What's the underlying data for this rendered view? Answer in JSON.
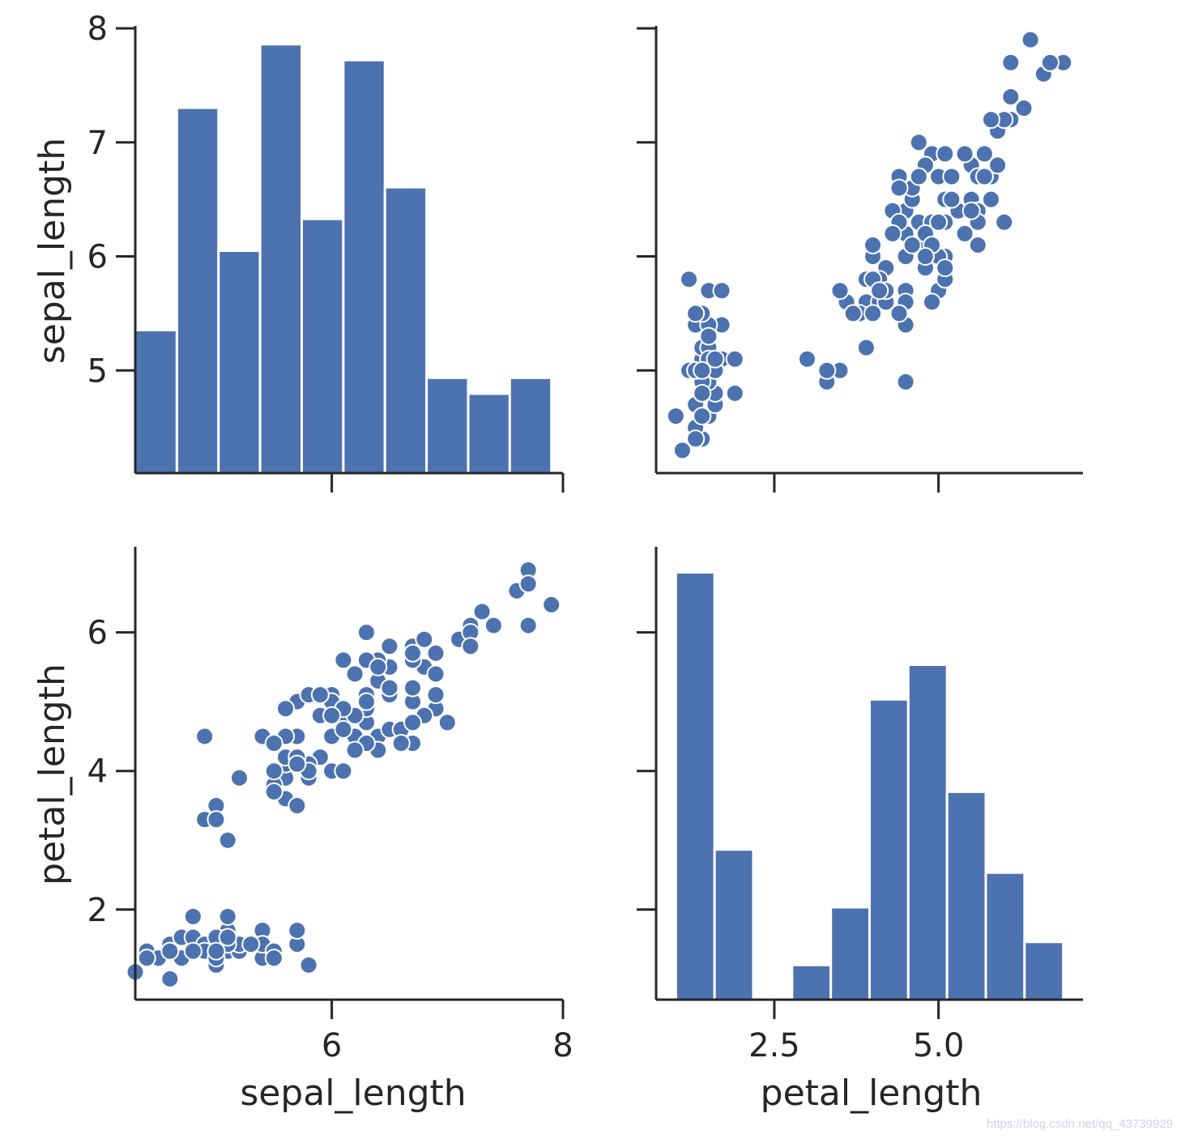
{
  "colors": {
    "mark": "#4c72b0",
    "mark_edge": "#ffffff",
    "axis": "#262626"
  },
  "chart_data": {
    "type": "pairplot",
    "variables": [
      "sepal_length",
      "petal_length"
    ],
    "panels": [
      {
        "id": "hist-sepal",
        "row": 0,
        "col": 0,
        "type": "bar",
        "x_variable": "sepal_length",
        "xlim": [
          4.3,
          8.0
        ],
        "xticks": [
          "6",
          "8"
        ],
        "xtick_values": [
          6,
          8
        ],
        "ylabel": "sepal_length",
        "ylim": [
          4.1,
          8.0
        ],
        "yticks": [
          "5",
          "6",
          "7",
          "8"
        ],
        "ytick_values": [
          5,
          6,
          7,
          8
        ],
        "bins": [
          4.3,
          4.66,
          5.02,
          5.38,
          5.74,
          6.1,
          6.46,
          6.82,
          7.18,
          7.54,
          7.9
        ],
        "counts": [
          9,
          23,
          14,
          27,
          16,
          26,
          18,
          6,
          5,
          6
        ],
        "count_max": 28
      },
      {
        "id": "scatter-top-right",
        "row": 0,
        "col": 1,
        "type": "scatter",
        "x_variable": "petal_length",
        "y_variable": "sepal_length",
        "xlim": [
          0.7,
          7.2
        ],
        "ylim": [
          4.1,
          8.0
        ],
        "xtick_values": [
          2.5,
          5.0
        ],
        "ytick_values": [
          5,
          6,
          7,
          8
        ],
        "points": [
          [
            1.4,
            5.1
          ],
          [
            1.4,
            4.9
          ],
          [
            1.3,
            4.7
          ],
          [
            1.5,
            4.6
          ],
          [
            1.4,
            5.0
          ],
          [
            1.7,
            5.4
          ],
          [
            1.4,
            4.6
          ],
          [
            1.5,
            5.0
          ],
          [
            1.4,
            4.4
          ],
          [
            1.5,
            4.9
          ],
          [
            1.5,
            5.4
          ],
          [
            1.6,
            4.8
          ],
          [
            1.4,
            4.8
          ],
          [
            1.1,
            4.3
          ],
          [
            1.2,
            5.8
          ],
          [
            1.5,
            5.7
          ],
          [
            1.3,
            5.4
          ],
          [
            1.4,
            5.1
          ],
          [
            1.7,
            5.7
          ],
          [
            1.5,
            5.1
          ],
          [
            1.7,
            5.4
          ],
          [
            1.5,
            5.1
          ],
          [
            1.0,
            4.6
          ],
          [
            1.7,
            5.1
          ],
          [
            1.9,
            4.8
          ],
          [
            1.6,
            5.0
          ],
          [
            1.6,
            5.0
          ],
          [
            1.5,
            5.2
          ],
          [
            1.4,
            5.2
          ],
          [
            1.6,
            4.7
          ],
          [
            1.6,
            4.8
          ],
          [
            1.5,
            5.4
          ],
          [
            1.5,
            5.2
          ],
          [
            1.4,
            5.5
          ],
          [
            1.5,
            4.9
          ],
          [
            1.2,
            5.0
          ],
          [
            1.3,
            5.5
          ],
          [
            1.4,
            4.9
          ],
          [
            1.3,
            4.4
          ],
          [
            1.5,
            5.1
          ],
          [
            1.3,
            5.0
          ],
          [
            1.3,
            4.5
          ],
          [
            1.3,
            4.4
          ],
          [
            1.6,
            5.0
          ],
          [
            1.9,
            5.1
          ],
          [
            1.4,
            4.8
          ],
          [
            1.6,
            5.1
          ],
          [
            1.4,
            4.6
          ],
          [
            1.5,
            5.3
          ],
          [
            1.4,
            5.0
          ],
          [
            4.7,
            7.0
          ],
          [
            4.5,
            6.4
          ],
          [
            4.9,
            6.9
          ],
          [
            4.0,
            5.5
          ],
          [
            4.6,
            6.5
          ],
          [
            4.5,
            5.7
          ],
          [
            4.7,
            6.3
          ],
          [
            3.3,
            4.9
          ],
          [
            4.6,
            6.6
          ],
          [
            3.9,
            5.2
          ],
          [
            3.5,
            5.0
          ],
          [
            4.2,
            5.9
          ],
          [
            4.0,
            6.0
          ],
          [
            4.7,
            6.1
          ],
          [
            3.6,
            5.6
          ],
          [
            4.4,
            6.7
          ],
          [
            4.5,
            5.6
          ],
          [
            4.1,
            5.8
          ],
          [
            4.5,
            6.2
          ],
          [
            3.9,
            5.6
          ],
          [
            4.8,
            5.9
          ],
          [
            4.0,
            6.1
          ],
          [
            4.9,
            6.3
          ],
          [
            4.7,
            6.1
          ],
          [
            4.3,
            6.4
          ],
          [
            4.4,
            6.6
          ],
          [
            4.8,
            6.8
          ],
          [
            5.0,
            6.7
          ],
          [
            4.5,
            6.0
          ],
          [
            3.5,
            5.7
          ],
          [
            3.8,
            5.5
          ],
          [
            3.7,
            5.5
          ],
          [
            3.9,
            5.8
          ],
          [
            5.1,
            6.0
          ],
          [
            4.5,
            5.4
          ],
          [
            4.5,
            6.0
          ],
          [
            4.7,
            6.7
          ],
          [
            4.4,
            6.3
          ],
          [
            4.1,
            5.6
          ],
          [
            4.0,
            5.5
          ],
          [
            4.4,
            5.5
          ],
          [
            4.6,
            6.1
          ],
          [
            4.0,
            5.8
          ],
          [
            3.3,
            5.0
          ],
          [
            4.2,
            5.6
          ],
          [
            4.2,
            5.7
          ],
          [
            4.2,
            5.7
          ],
          [
            4.3,
            6.2
          ],
          [
            3.0,
            5.1
          ],
          [
            4.1,
            5.7
          ],
          [
            6.0,
            6.3
          ],
          [
            5.1,
            5.8
          ],
          [
            5.9,
            7.1
          ],
          [
            5.6,
            6.3
          ],
          [
            5.8,
            6.5
          ],
          [
            6.6,
            7.6
          ],
          [
            4.5,
            4.9
          ],
          [
            6.3,
            7.3
          ],
          [
            5.8,
            6.7
          ],
          [
            6.1,
            7.2
          ],
          [
            5.1,
            6.5
          ],
          [
            5.3,
            6.4
          ],
          [
            5.5,
            6.8
          ],
          [
            5.0,
            5.7
          ],
          [
            5.1,
            5.8
          ],
          [
            5.3,
            6.4
          ],
          [
            5.5,
            6.5
          ],
          [
            6.7,
            7.7
          ],
          [
            6.9,
            7.7
          ],
          [
            5.0,
            6.0
          ],
          [
            5.7,
            6.9
          ],
          [
            4.9,
            5.6
          ],
          [
            6.7,
            7.7
          ],
          [
            4.9,
            6.3
          ],
          [
            5.7,
            6.7
          ],
          [
            6.0,
            7.2
          ],
          [
            4.8,
            6.2
          ],
          [
            4.9,
            6.1
          ],
          [
            5.6,
            6.4
          ],
          [
            5.8,
            7.2
          ],
          [
            6.1,
            7.4
          ],
          [
            6.4,
            7.9
          ],
          [
            5.6,
            6.4
          ],
          [
            5.1,
            6.3
          ],
          [
            5.6,
            6.1
          ],
          [
            6.1,
            7.7
          ],
          [
            5.6,
            6.3
          ],
          [
            5.5,
            6.4
          ],
          [
            4.8,
            6.0
          ],
          [
            5.4,
            6.9
          ],
          [
            5.6,
            6.7
          ],
          [
            5.1,
            6.9
          ],
          [
            5.1,
            5.8
          ],
          [
            5.9,
            6.8
          ],
          [
            5.7,
            6.7
          ],
          [
            5.2,
            6.7
          ],
          [
            5.0,
            6.3
          ],
          [
            5.2,
            6.5
          ],
          [
            5.4,
            6.2
          ],
          [
            5.1,
            5.9
          ]
        ]
      },
      {
        "id": "scatter-bottom-left",
        "row": 1,
        "col": 0,
        "type": "scatter",
        "x_variable": "sepal_length",
        "y_variable": "petal_length",
        "xlabel": "sepal_length",
        "ylabel": "petal_length",
        "xlim": [
          4.3,
          8.0
        ],
        "ylim": [
          0.7,
          7.2
        ],
        "xticks": [
          "6",
          "8"
        ],
        "xtick_values": [
          6,
          8
        ],
        "yticks": [
          "2",
          "4",
          "6"
        ],
        "ytick_values": [
          2,
          4,
          6
        ],
        "points": []
      },
      {
        "id": "hist-petal",
        "row": 1,
        "col": 1,
        "type": "bar",
        "x_variable": "petal_length",
        "xlabel": "petal_length",
        "xlim": [
          0.7,
          7.2
        ],
        "xticks": [
          "2.5",
          "5.0"
        ],
        "xtick_values": [
          2.5,
          5.0
        ],
        "ylim": [
          0.7,
          7.2
        ],
        "ytick_values": [
          2,
          4,
          6
        ],
        "bins": [
          1.0,
          1.59,
          2.18,
          2.77,
          3.36,
          3.95,
          4.54,
          5.13,
          5.72,
          6.31,
          6.9
        ],
        "counts": [
          37,
          13,
          0,
          3,
          8,
          26,
          29,
          18,
          11,
          5
        ],
        "count_max": 39
      }
    ]
  },
  "watermark": "https://blog.csdn.net/qq_43739929"
}
